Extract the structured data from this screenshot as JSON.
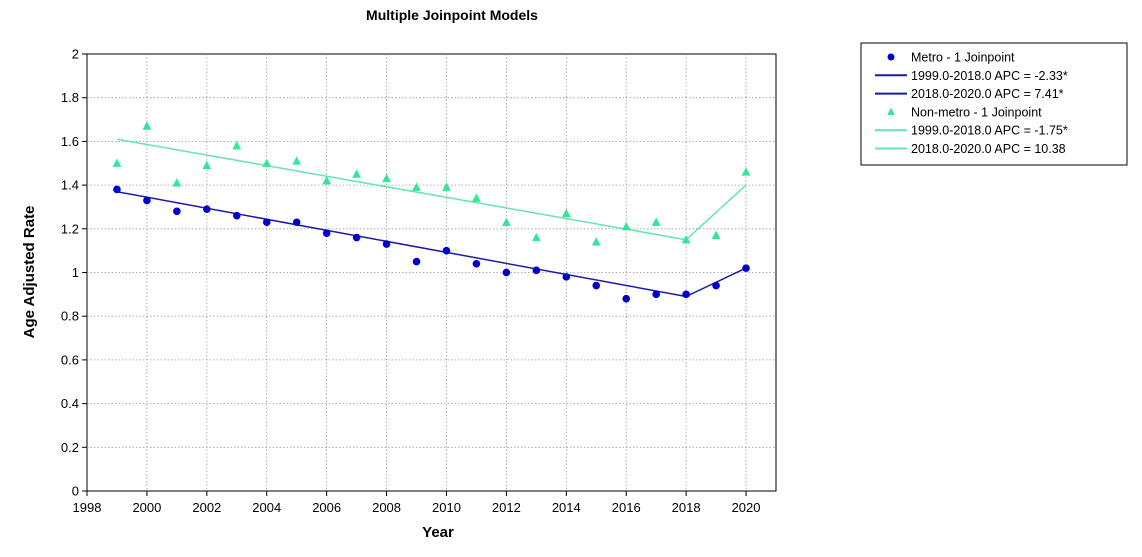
{
  "chart_data": {
    "type": "scatter",
    "title": "Multiple Joinpoint Models",
    "xlabel": "Year",
    "ylabel": "Age Adjusted Rate",
    "xlim": [
      1998,
      2021
    ],
    "ylim": [
      0,
      2
    ],
    "xticks": [
      "1998",
      "2000",
      "2002",
      "2004",
      "2006",
      "2008",
      "2010",
      "2012",
      "2014",
      "2016",
      "2018",
      "2020"
    ],
    "yticks": [
      "0",
      "0.2",
      "0.4",
      "0.6",
      "0.8",
      "1",
      "1.2",
      "1.4",
      "1.6",
      "1.8",
      "2"
    ],
    "grid": true,
    "legend_position": "right",
    "series": [
      {
        "name": "Metro - 1 Joinpoint",
        "kind": "points",
        "marker": "circle",
        "color": "#0000cc",
        "x": [
          1999,
          2000,
          2001,
          2002,
          2003,
          2004,
          2005,
          2006,
          2007,
          2008,
          2009,
          2010,
          2011,
          2012,
          2013,
          2014,
          2015,
          2016,
          2017,
          2018,
          2019,
          2020
        ],
        "y": [
          1.38,
          1.33,
          1.28,
          1.29,
          1.26,
          1.23,
          1.23,
          1.18,
          1.16,
          1.13,
          1.05,
          1.1,
          1.04,
          1.0,
          1.01,
          0.98,
          0.94,
          0.88,
          0.9,
          0.9,
          0.94,
          1.02
        ]
      },
      {
        "name": "1999.0-2018.0 APC  = -2.33*",
        "kind": "line",
        "color": "#1a1aa6",
        "x": [
          1999,
          2018
        ],
        "y": [
          1.37,
          0.89
        ]
      },
      {
        "name": "2018.0-2020.0 APC  =  7.41*",
        "kind": "line",
        "color": "#1a1aa6",
        "x": [
          2018,
          2020
        ],
        "y": [
          0.89,
          1.02
        ]
      },
      {
        "name": "Non-metro - 1 Joinpoint",
        "kind": "points",
        "marker": "triangle",
        "color": "#33e699",
        "x": [
          1999,
          2000,
          2001,
          2002,
          2003,
          2004,
          2005,
          2006,
          2007,
          2008,
          2009,
          2010,
          2011,
          2012,
          2013,
          2014,
          2015,
          2016,
          2017,
          2018,
          2019,
          2020
        ],
        "y": [
          1.5,
          1.67,
          1.41,
          1.49,
          1.58,
          1.5,
          1.51,
          1.42,
          1.45,
          1.43,
          1.39,
          1.39,
          1.34,
          1.23,
          1.16,
          1.27,
          1.14,
          1.21,
          1.23,
          1.15,
          1.17,
          1.46
        ]
      },
      {
        "name": "1999.0-2018.0 APC  = -1.75*",
        "kind": "line",
        "color": "#66e6aa",
        "x": [
          1999,
          2018
        ],
        "y": [
          1.61,
          1.15
        ]
      },
      {
        "name": "2018.0-2020.0 APC  = 10.38",
        "kind": "line",
        "color": "#66e6aa",
        "x": [
          2018,
          2020
        ],
        "y": [
          1.15,
          1.4
        ]
      }
    ]
  }
}
